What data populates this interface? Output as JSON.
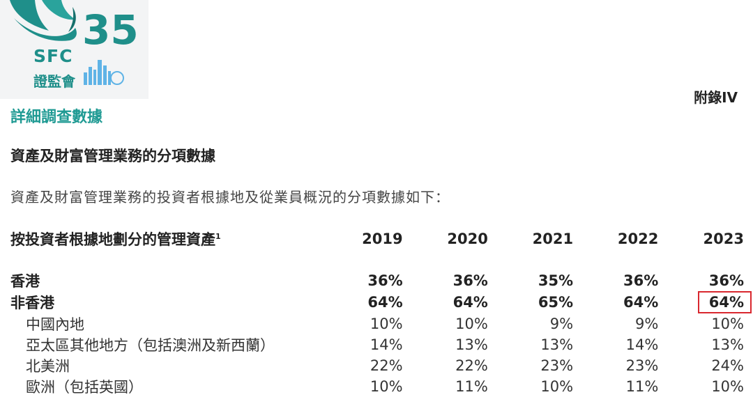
{
  "logo": {
    "number": "35",
    "abbr": "SFC",
    "name_cn": "證監會"
  },
  "header": {
    "appendix": "附錄IV",
    "section_title": "詳細調查數據"
  },
  "subsection": {
    "title": "資產及財富管理業務的分項數據",
    "intro": "資產及財富管理業務的投資者根據地及從業員概況的分項數據如下："
  },
  "table": {
    "heading": "按投資者根據地劃分的管理資產",
    "heading_footnote": "1",
    "years": [
      "2019",
      "2020",
      "2021",
      "2022",
      "2023"
    ],
    "rows": [
      {
        "label": "香港",
        "values": [
          "36%",
          "36%",
          "35%",
          "36%",
          "36%"
        ]
      },
      {
        "label": "非香港",
        "values": [
          "64%",
          "64%",
          "65%",
          "64%",
          "64%"
        ]
      },
      {
        "label": "中國內地",
        "values": [
          "10%",
          "10%",
          "9%",
          "9%",
          "10%"
        ]
      },
      {
        "label": "亞太區其他地方（包括澳洲及新西蘭）",
        "values": [
          "14%",
          "13%",
          "13%",
          "14%",
          "13%"
        ]
      },
      {
        "label": "北美洲",
        "values": [
          "22%",
          "22%",
          "23%",
          "23%",
          "24%"
        ]
      },
      {
        "label": "歐洲（包括英國）",
        "values": [
          "10%",
          "11%",
          "10%",
          "11%",
          "10%"
        ]
      }
    ]
  }
}
